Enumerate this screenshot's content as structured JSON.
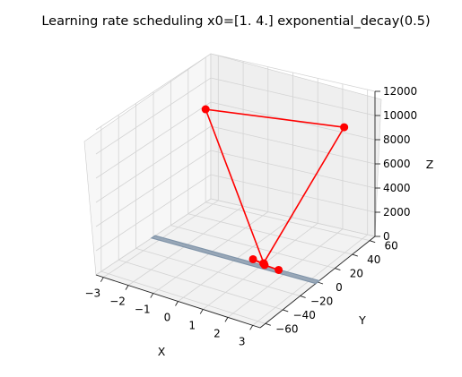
{
  "chart_data": {
    "type": "line3d",
    "title": "Learning rate scheduling x0=[1. 4.] exponential_decay(0.5)",
    "xlabel": "X",
    "ylabel": "Y",
    "zlabel": "Z",
    "xlim": [
      -3.3,
      3.3
    ],
    "ylim": [
      -66,
      66
    ],
    "zlim": [
      0,
      12000
    ],
    "x_ticks": [
      "−3",
      "−2",
      "−1",
      "0",
      "1",
      "2",
      "3"
    ],
    "y_ticks": [
      "−60",
      "−40",
      "−20",
      "0",
      "20",
      "40",
      "60"
    ],
    "z_ticks": [
      "0",
      "2000",
      "4000",
      "6000",
      "8000",
      "10000",
      "12000"
    ],
    "grid": true,
    "surface": {
      "shown_as": "thin blue-grey band along y = 0",
      "color": "#7f93a8"
    },
    "series": [
      {
        "color": "#ff0000",
        "marker": "o",
        "points": [
          {
            "x": 1.0,
            "y": 4.0,
            "z": 32
          },
          {
            "x": -2.6,
            "y": 40.0,
            "z": 9000
          },
          {
            "x": 2.9,
            "y": 42.0,
            "z": 10200
          },
          {
            "x": 1.4,
            "y": -8.0,
            "z": 900
          },
          {
            "x": 0.6,
            "y": 3.0,
            "z": 200
          },
          {
            "x": 1.1,
            "y": 2.0,
            "z": 60
          },
          {
            "x": 1.7,
            "y": 1.0,
            "z": 40
          }
        ]
      }
    ]
  }
}
